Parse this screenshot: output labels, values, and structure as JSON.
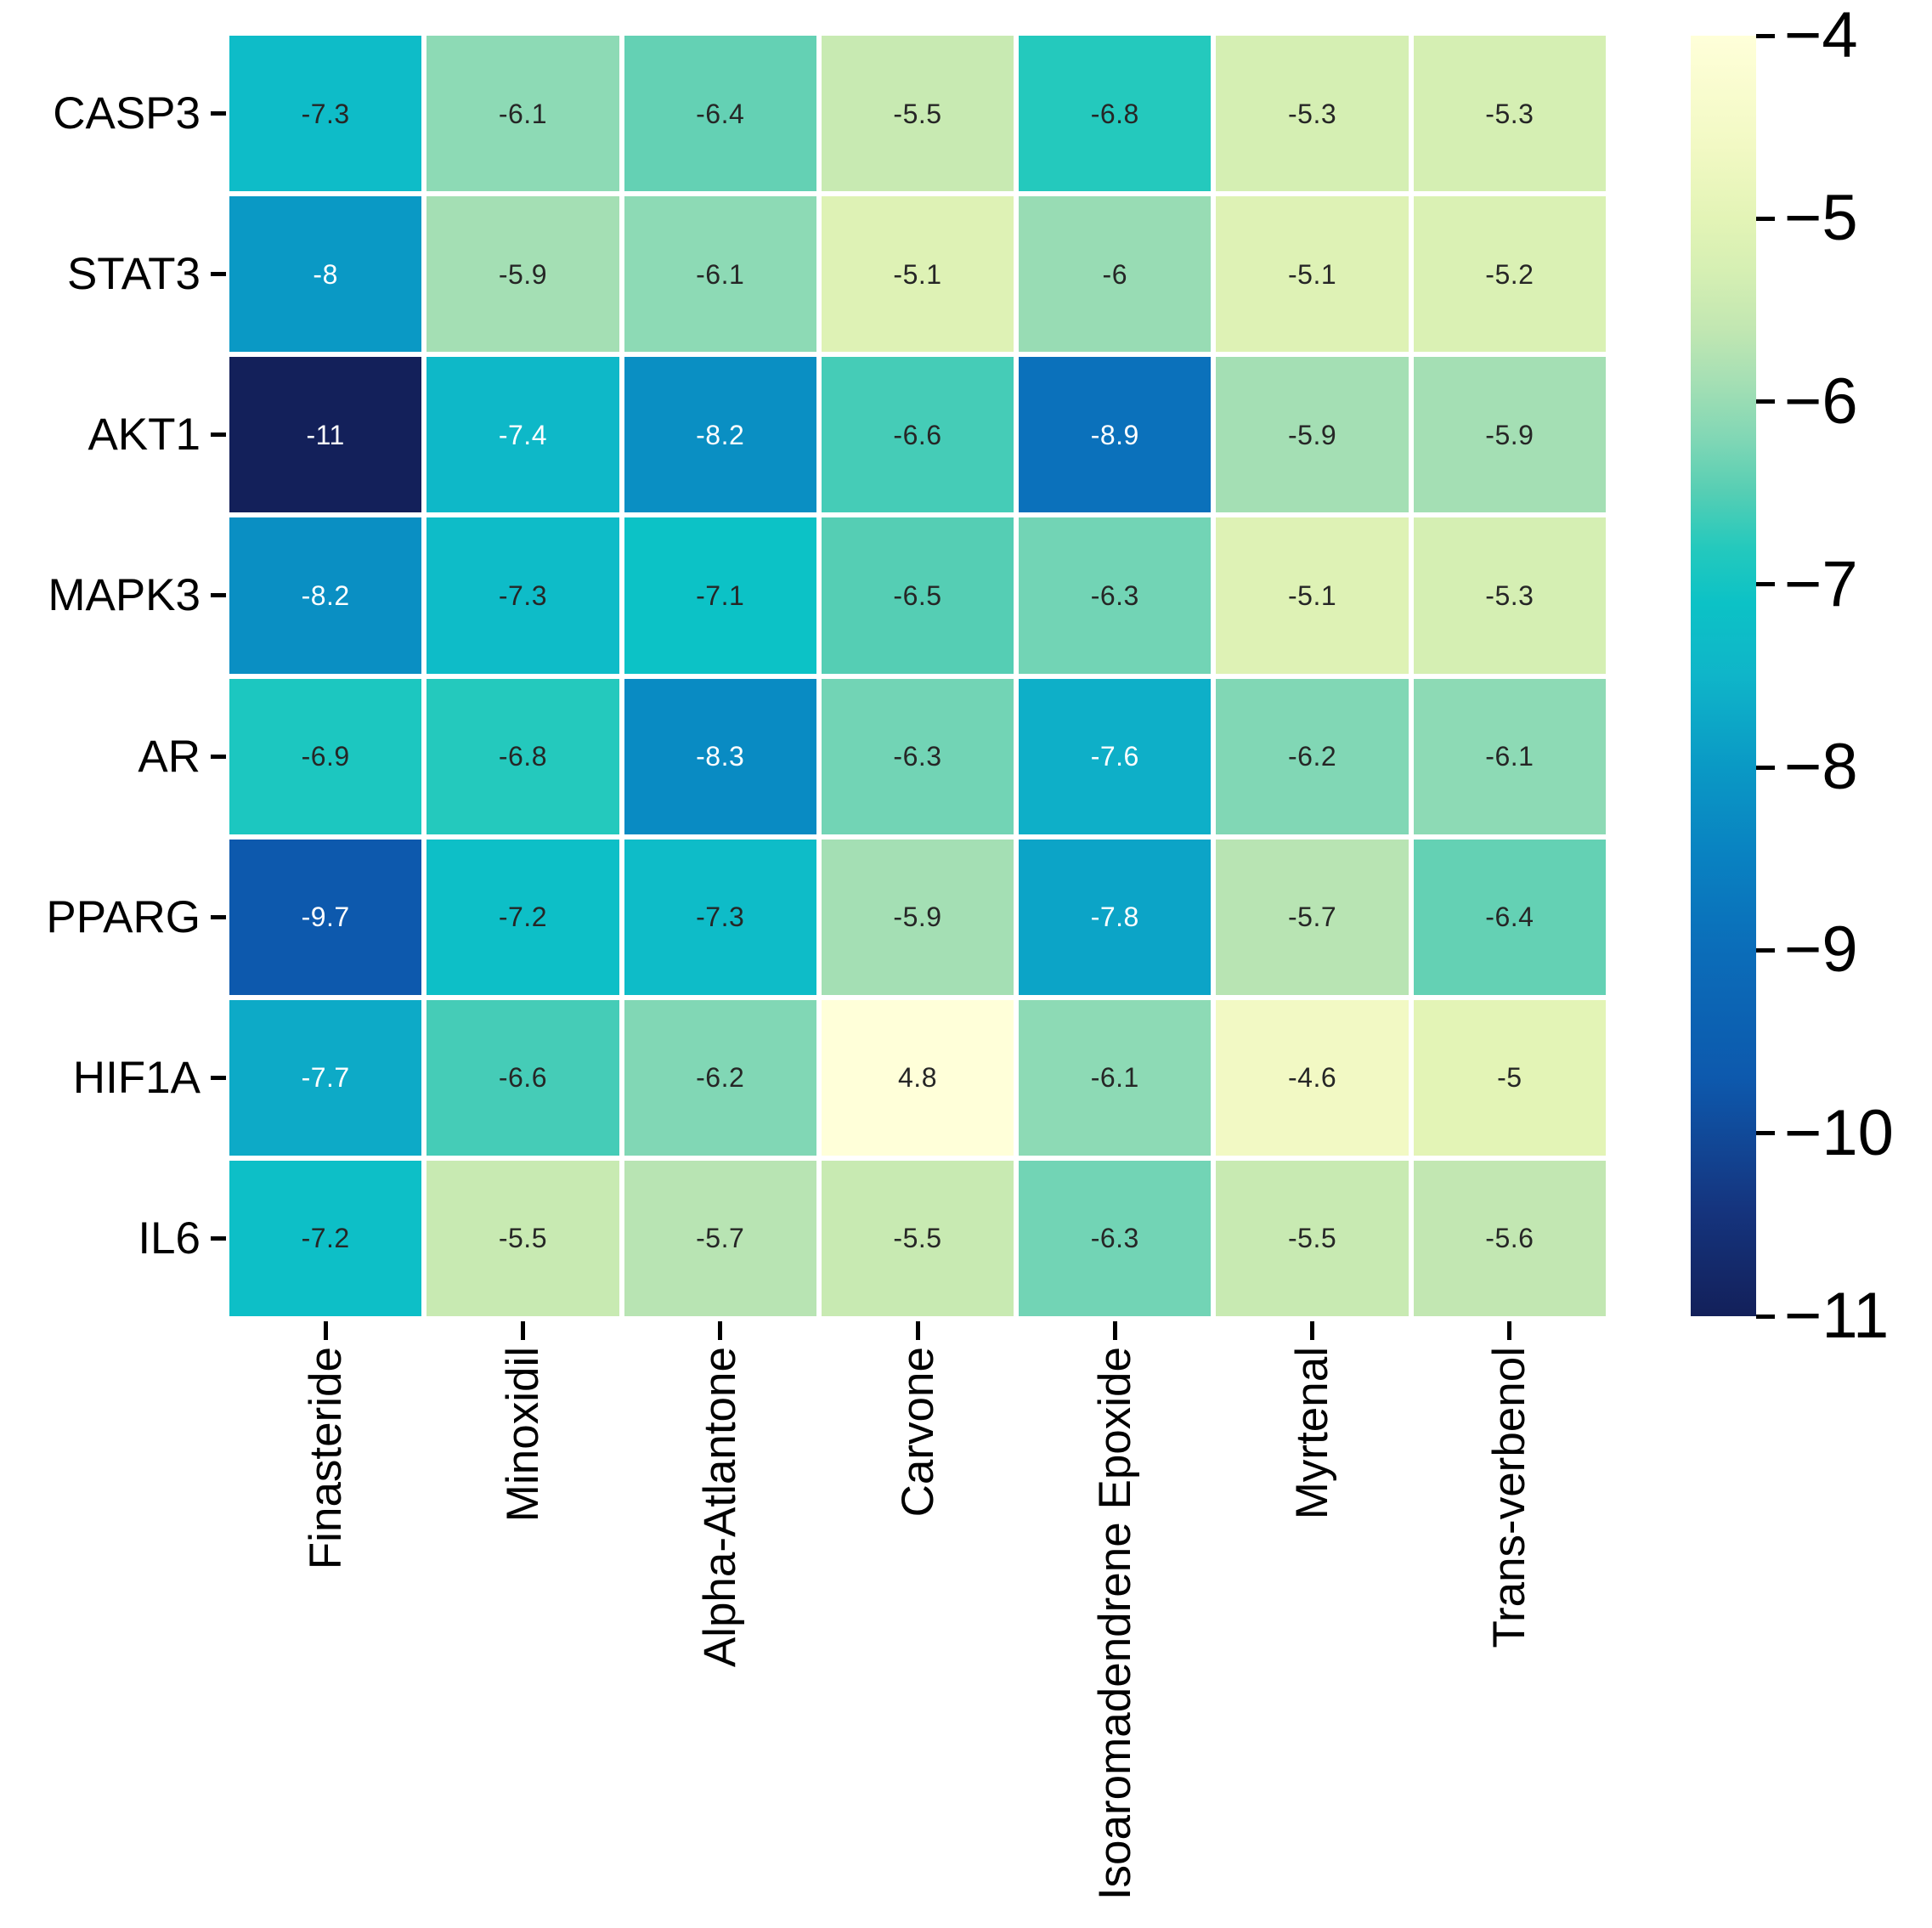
{
  "chart_data": {
    "type": "heatmap",
    "title": "",
    "rows": [
      "CASP3",
      "STAT3",
      "AKT1",
      "MAPK3",
      "AR",
      "PPARG",
      "HIF1A",
      "IL6"
    ],
    "columns": [
      "Finasteride",
      "Minoxidil",
      "Alpha-Atlantone",
      "Carvone",
      "Isoaromadendrene Epoxide",
      "Myrtenal",
      "Trans-verbenol"
    ],
    "values": [
      [
        -7.3,
        -6.1,
        -6.4,
        -5.5,
        -6.8,
        -5.3,
        -5.3
      ],
      [
        -8.0,
        -5.9,
        -6.1,
        -5.1,
        -6.0,
        -5.1,
        -5.2
      ],
      [
        -11.0,
        -7.4,
        -8.2,
        -6.6,
        -8.9,
        -5.9,
        -5.9
      ],
      [
        -8.2,
        -7.3,
        -7.1,
        -6.5,
        -6.3,
        -5.1,
        -5.3
      ],
      [
        -6.9,
        -6.8,
        -8.3,
        -6.3,
        -7.6,
        -6.2,
        -6.1
      ],
      [
        -9.7,
        -7.2,
        -7.3,
        -5.9,
        -7.8,
        -5.7,
        -6.4
      ],
      [
        -7.7,
        -6.6,
        -6.2,
        4.8,
        -6.1,
        -4.6,
        -5.0
      ],
      [
        -7.2,
        -5.5,
        -5.7,
        -5.5,
        -6.3,
        -5.5,
        -5.6
      ]
    ],
    "cell_labels": [
      [
        "-7.3",
        "-6.1",
        "-6.4",
        "-5.5",
        "-6.8",
        "-5.3",
        "-5.3"
      ],
      [
        "-8",
        "-5.9",
        "-6.1",
        "-5.1",
        "-6",
        "-5.1",
        "-5.2"
      ],
      [
        "-11",
        "-7.4",
        "-8.2",
        "-6.6",
        "-8.9",
        "-5.9",
        "-5.9"
      ],
      [
        "-8.2",
        "-7.3",
        "-7.1",
        "-6.5",
        "-6.3",
        "-5.1",
        "-5.3"
      ],
      [
        "-6.9",
        "-6.8",
        "-8.3",
        "-6.3",
        "-7.6",
        "-6.2",
        "-6.1"
      ],
      [
        "-9.7",
        "-7.2",
        "-7.3",
        "-5.9",
        "-7.8",
        "-5.7",
        "-6.4"
      ],
      [
        "-7.7",
        "-6.6",
        "-6.2",
        "4.8",
        "-6.1",
        "-4.6",
        "-5"
      ],
      [
        "-7.2",
        "-5.5",
        "-5.7",
        "-5.5",
        "-6.3",
        "-5.5",
        "-5.6"
      ]
    ],
    "colorbar": {
      "position": "right",
      "tick_labels": [
        "−4",
        "−5",
        "−6",
        "−7",
        "−8",
        "−9",
        "−10",
        "−11"
      ],
      "top_value": -4,
      "bottom_value": -11
    },
    "colormap_anchors": [
      [
        -4.0,
        "#ffffd9"
      ],
      [
        -4.6,
        "#f2f9c4"
      ],
      [
        -5.0,
        "#e3f4b6"
      ],
      [
        -5.3,
        "#d5efb3"
      ],
      [
        -5.6,
        "#c2e7b2"
      ],
      [
        -5.9,
        "#a4dfb4"
      ],
      [
        -6.2,
        "#81d7b5"
      ],
      [
        -6.5,
        "#55ceb4"
      ],
      [
        -6.8,
        "#24c9bd"
      ],
      [
        -7.1,
        "#0cc2c6"
      ],
      [
        -7.5,
        "#0fb5c9"
      ],
      [
        -8.0,
        "#0a99c5"
      ],
      [
        -8.5,
        "#0981c1"
      ],
      [
        -9.0,
        "#0b6db9"
      ],
      [
        -9.7,
        "#0d59ad"
      ],
      [
        -10.4,
        "#15357f"
      ],
      [
        -11.0,
        "#13205a"
      ]
    ],
    "annotation_colors": {
      "light": "#ffffff",
      "dark": "#262626"
    },
    "white_text_threshold": -7.35,
    "grid_gap_color": "#ffffff",
    "axis_color": "#000000"
  }
}
